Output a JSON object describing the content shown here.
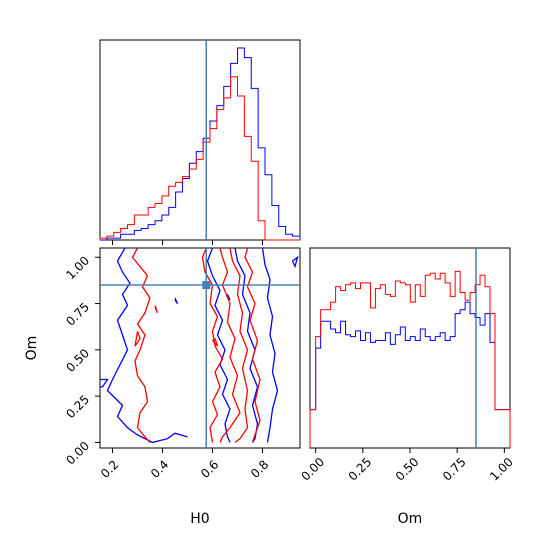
{
  "chart_data": {
    "type": "corner_plot",
    "parameters": [
      "H0",
      "Om"
    ],
    "truths": {
      "H0": 0.575,
      "Om": 0.85
    },
    "series_colors": {
      "red": "#ff0000",
      "blue": "#0000ff",
      "truth": "#4682b4"
    },
    "h0_hist": {
      "xlim": [
        0.15,
        0.95
      ],
      "bin_edges": [
        0.15,
        0.1775,
        0.205,
        0.2325,
        0.26,
        0.2875,
        0.315,
        0.3425,
        0.37,
        0.3975,
        0.425,
        0.4525,
        0.48,
        0.5075,
        0.535,
        0.5625,
        0.59,
        0.6175,
        0.645,
        0.6725,
        0.7,
        0.7275,
        0.755,
        0.7825,
        0.81,
        0.8375,
        0.865,
        0.8925,
        0.92,
        0.95
      ],
      "red": [
        0.01,
        0.02,
        0.04,
        0.06,
        0.08,
        0.13,
        0.13,
        0.17,
        0.19,
        0.23,
        0.28,
        0.3,
        0.33,
        0.37,
        0.42,
        0.51,
        0.58,
        0.68,
        0.74,
        0.85,
        0.75,
        0.54,
        0.41,
        0.1,
        0.0,
        0.0,
        0.0,
        0.0,
        0.0
      ],
      "blue": [
        0.0,
        0.01,
        0.01,
        0.03,
        0.03,
        0.05,
        0.06,
        0.08,
        0.1,
        0.13,
        0.17,
        0.25,
        0.32,
        0.4,
        0.46,
        0.53,
        0.62,
        0.7,
        0.8,
        0.92,
        1.0,
        0.95,
        0.79,
        0.48,
        0.34,
        0.18,
        0.07,
        0.03,
        0.02
      ]
    },
    "scatter": {
      "xlim": [
        0.15,
        0.95
      ],
      "ylim": [
        -0.03,
        1.05
      ],
      "xticks": [
        "0.2",
        "0.4",
        "0.6",
        "0.8"
      ],
      "yticks": [
        "0.00",
        "0.25",
        "0.50",
        "0.75",
        "1.00"
      ],
      "xlabel": "H0",
      "ylabel": "Om"
    },
    "om_hist": {
      "xlim": [
        -0.03,
        1.03
      ],
      "xticks": [
        "0.00",
        "0.25",
        "0.50",
        "0.75",
        "1.00"
      ],
      "xlabel": "Om",
      "bin_edges": [
        -0.03,
        0.0,
        0.0264,
        0.0528,
        0.0792,
        0.1056,
        0.132,
        0.1584,
        0.1848,
        0.2112,
        0.2376,
        0.264,
        0.2904,
        0.3168,
        0.3432,
        0.3696,
        0.396,
        0.4224,
        0.4488,
        0.4752,
        0.5016,
        0.528,
        0.5544,
        0.5808,
        0.6072,
        0.6336,
        0.66,
        0.6864,
        0.7128,
        0.7392,
        0.7656,
        0.792,
        0.8184,
        0.8448,
        0.8712,
        0.8976,
        0.924,
        0.9504,
        0.9768,
        1.0,
        1.03
      ],
      "red": [
        0.2,
        0.58,
        0.72,
        0.72,
        0.76,
        0.84,
        0.82,
        0.85,
        0.86,
        0.83,
        0.86,
        0.86,
        0.73,
        0.83,
        0.85,
        0.8,
        0.79,
        0.87,
        0.86,
        0.85,
        0.76,
        0.85,
        0.79,
        0.9,
        0.91,
        0.88,
        0.91,
        0.86,
        0.79,
        0.92,
        0.81,
        0.77,
        0.81,
        0.85,
        0.9,
        0.84,
        0.7,
        0.2,
        0.2,
        0.2
      ],
      "blue": [
        0.2,
        0.52,
        0.66,
        0.66,
        0.62,
        0.6,
        0.66,
        0.59,
        0.58,
        0.61,
        0.56,
        0.6,
        0.55,
        0.56,
        0.56,
        0.6,
        0.54,
        0.59,
        0.63,
        0.56,
        0.58,
        0.56,
        0.62,
        0.58,
        0.56,
        0.58,
        0.6,
        0.56,
        0.58,
        0.7,
        0.72,
        0.76,
        0.7,
        0.68,
        0.64,
        0.7,
        0.55,
        0.2,
        0.2,
        0.2
      ]
    },
    "contours": {
      "red": [
        [
          [
            0.3,
            1.05
          ],
          [
            0.28,
            1.0
          ],
          [
            0.31,
            0.95
          ],
          [
            0.34,
            0.9
          ],
          [
            0.32,
            0.84
          ],
          [
            0.35,
            0.78
          ],
          [
            0.33,
            0.7
          ],
          [
            0.3,
            0.64
          ],
          [
            0.33,
            0.58
          ],
          [
            0.31,
            0.5
          ],
          [
            0.29,
            0.44
          ],
          [
            0.3,
            0.36
          ],
          [
            0.33,
            0.3
          ],
          [
            0.34,
            0.22
          ],
          [
            0.31,
            0.16
          ],
          [
            0.3,
            0.08
          ],
          [
            0.33,
            0.03
          ],
          [
            0.35,
            0.0
          ]
        ],
        [
          [
            0.575,
            1.05
          ],
          [
            0.56,
            1.0
          ],
          [
            0.57,
            0.92
          ],
          [
            0.6,
            0.85
          ],
          [
            0.59,
            0.75
          ],
          [
            0.62,
            0.68
          ],
          [
            0.6,
            0.6
          ],
          [
            0.61,
            0.52
          ],
          [
            0.64,
            0.45
          ],
          [
            0.61,
            0.38
          ],
          [
            0.63,
            0.3
          ],
          [
            0.6,
            0.22
          ],
          [
            0.62,
            0.15
          ],
          [
            0.59,
            0.08
          ],
          [
            0.6,
            0.0
          ]
        ],
        [
          [
            0.63,
            1.05
          ],
          [
            0.64,
            1.0
          ],
          [
            0.66,
            0.92
          ],
          [
            0.64,
            0.85
          ],
          [
            0.67,
            0.75
          ],
          [
            0.66,
            0.65
          ],
          [
            0.69,
            0.56
          ],
          [
            0.67,
            0.46
          ],
          [
            0.7,
            0.36
          ],
          [
            0.68,
            0.26
          ],
          [
            0.71,
            0.16
          ],
          [
            0.67,
            0.08
          ],
          [
            0.64,
            0.03
          ],
          [
            0.63,
            0.0
          ]
        ],
        [
          [
            0.67,
            1.05
          ],
          [
            0.68,
            0.98
          ],
          [
            0.71,
            0.9
          ],
          [
            0.7,
            0.8
          ],
          [
            0.72,
            0.7
          ],
          [
            0.71,
            0.6
          ],
          [
            0.74,
            0.5
          ],
          [
            0.72,
            0.4
          ],
          [
            0.74,
            0.28
          ],
          [
            0.73,
            0.18
          ],
          [
            0.74,
            0.08
          ],
          [
            0.71,
            0.02
          ],
          [
            0.69,
            0.0
          ]
        ],
        [
          [
            0.74,
            1.05
          ],
          [
            0.73,
            1.0
          ],
          [
            0.76,
            0.92
          ],
          [
            0.74,
            0.84
          ],
          [
            0.77,
            0.75
          ],
          [
            0.75,
            0.66
          ],
          [
            0.78,
            0.55
          ],
          [
            0.76,
            0.45
          ],
          [
            0.79,
            0.34
          ],
          [
            0.77,
            0.22
          ],
          [
            0.79,
            0.12
          ],
          [
            0.77,
            0.04
          ],
          [
            0.76,
            0.0
          ]
        ],
        [
          [
            0.3,
            0.6
          ],
          [
            0.31,
            0.56
          ],
          [
            0.29,
            0.52
          ],
          [
            0.3,
            0.6
          ]
        ],
        [
          [
            0.37,
            0.73
          ],
          [
            0.38,
            0.7
          ],
          [
            0.37,
            0.74
          ]
        ],
        [
          [
            0.6,
            0.55
          ],
          [
            0.62,
            0.52
          ],
          [
            0.61,
            0.56
          ],
          [
            0.6,
            0.55
          ]
        ]
      ],
      "blue": [
        [
          [
            0.25,
            1.05
          ],
          [
            0.22,
            0.98
          ],
          [
            0.24,
            0.92
          ],
          [
            0.27,
            0.86
          ],
          [
            0.24,
            0.8
          ],
          [
            0.26,
            0.74
          ],
          [
            0.22,
            0.66
          ],
          [
            0.24,
            0.58
          ],
          [
            0.26,
            0.5
          ],
          [
            0.23,
            0.42
          ],
          [
            0.2,
            0.34
          ],
          [
            0.18,
            0.28
          ],
          [
            0.21,
            0.24
          ],
          [
            0.24,
            0.2
          ],
          [
            0.22,
            0.14
          ],
          [
            0.26,
            0.08
          ],
          [
            0.3,
            0.04
          ],
          [
            0.36,
            0.0
          ],
          [
            0.42,
            0.02
          ],
          [
            0.45,
            0.05
          ],
          [
            0.5,
            0.03
          ]
        ],
        [
          [
            0.6,
            1.05
          ],
          [
            0.58,
            0.98
          ],
          [
            0.6,
            0.9
          ],
          [
            0.63,
            0.82
          ],
          [
            0.61,
            0.74
          ],
          [
            0.64,
            0.66
          ],
          [
            0.62,
            0.58
          ],
          [
            0.65,
            0.5
          ],
          [
            0.63,
            0.42
          ],
          [
            0.66,
            0.34
          ],
          [
            0.64,
            0.26
          ],
          [
            0.67,
            0.18
          ],
          [
            0.65,
            0.1
          ],
          [
            0.66,
            0.03
          ],
          [
            0.67,
            0.0
          ]
        ],
        [
          [
            0.69,
            1.05
          ],
          [
            0.7,
            0.98
          ],
          [
            0.73,
            0.9
          ],
          [
            0.72,
            0.8
          ],
          [
            0.75,
            0.7
          ],
          [
            0.74,
            0.6
          ],
          [
            0.77,
            0.5
          ],
          [
            0.75,
            0.4
          ],
          [
            0.78,
            0.3
          ],
          [
            0.76,
            0.2
          ],
          [
            0.78,
            0.1
          ],
          [
            0.77,
            0.02
          ],
          [
            0.76,
            0.0
          ]
        ],
        [
          [
            0.8,
            1.05
          ],
          [
            0.81,
            0.96
          ],
          [
            0.83,
            0.88
          ],
          [
            0.82,
            0.78
          ],
          [
            0.84,
            0.68
          ],
          [
            0.83,
            0.58
          ],
          [
            0.85,
            0.48
          ],
          [
            0.84,
            0.38
          ],
          [
            0.86,
            0.28
          ],
          [
            0.84,
            0.18
          ],
          [
            0.83,
            0.08
          ],
          [
            0.82,
            0.0
          ]
        ],
        [
          [
            0.15,
            0.34
          ],
          [
            0.18,
            0.34
          ],
          [
            0.16,
            0.3
          ],
          [
            0.15,
            0.3
          ]
        ],
        [
          [
            0.92,
            0.98
          ],
          [
            0.94,
            1.0
          ],
          [
            0.93,
            0.95
          ],
          [
            0.92,
            0.98
          ]
        ],
        [
          [
            0.45,
            0.78
          ],
          [
            0.46,
            0.75
          ],
          [
            0.45,
            0.77
          ]
        ],
        [
          [
            0.66,
            0.8
          ],
          [
            0.67,
            0.77
          ],
          [
            0.66,
            0.79
          ]
        ]
      ]
    }
  }
}
